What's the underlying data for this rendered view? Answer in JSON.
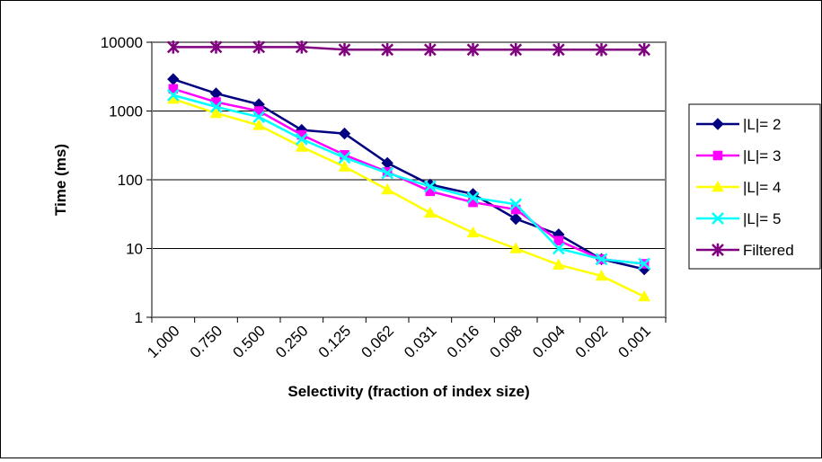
{
  "chart_data": {
    "type": "line",
    "title": "",
    "xlabel": "Selectivity (fraction of index size)",
    "ylabel": "Time (ms)",
    "yscale": "log",
    "ylim": [
      1,
      10000
    ],
    "ytick_labels": [
      "1",
      "10",
      "100",
      "1000",
      "10000"
    ],
    "grid": "horizontal",
    "legend_position": "right",
    "categories": [
      "1.000",
      "0.750",
      "0.500",
      "0.250",
      "0.125",
      "0.062",
      "0.031",
      "0.016",
      "0.008",
      "0.004",
      "0.002",
      "0.001"
    ],
    "series": [
      {
        "name": "|L|= 2",
        "color": "#000080",
        "marker": "diamond",
        "values": [
          2900,
          1800,
          1250,
          530,
          470,
          175,
          85,
          62,
          27,
          16,
          7,
          5
        ]
      },
      {
        "name": "|L|= 3",
        "color": "#FF00FF",
        "marker": "square",
        "values": [
          2100,
          1350,
          1000,
          450,
          230,
          130,
          68,
          47,
          37,
          13,
          7,
          6
        ]
      },
      {
        "name": "|L|= 4",
        "color": "#FFFF00",
        "marker": "triangle",
        "values": [
          1500,
          930,
          620,
          300,
          155,
          72,
          33,
          17,
          10,
          5.8,
          4,
          2
        ]
      },
      {
        "name": "|L|= 5",
        "color": "#00FFFF",
        "marker": "x",
        "values": [
          1700,
          1150,
          820,
          390,
          210,
          125,
          80,
          55,
          44,
          10,
          7,
          6
        ]
      },
      {
        "name": "Filtered",
        "color": "#800080",
        "marker": "star",
        "values": [
          8500,
          8500,
          8500,
          8500,
          7800,
          7800,
          7800,
          7800,
          7800,
          7800,
          7800,
          7800
        ]
      }
    ]
  }
}
